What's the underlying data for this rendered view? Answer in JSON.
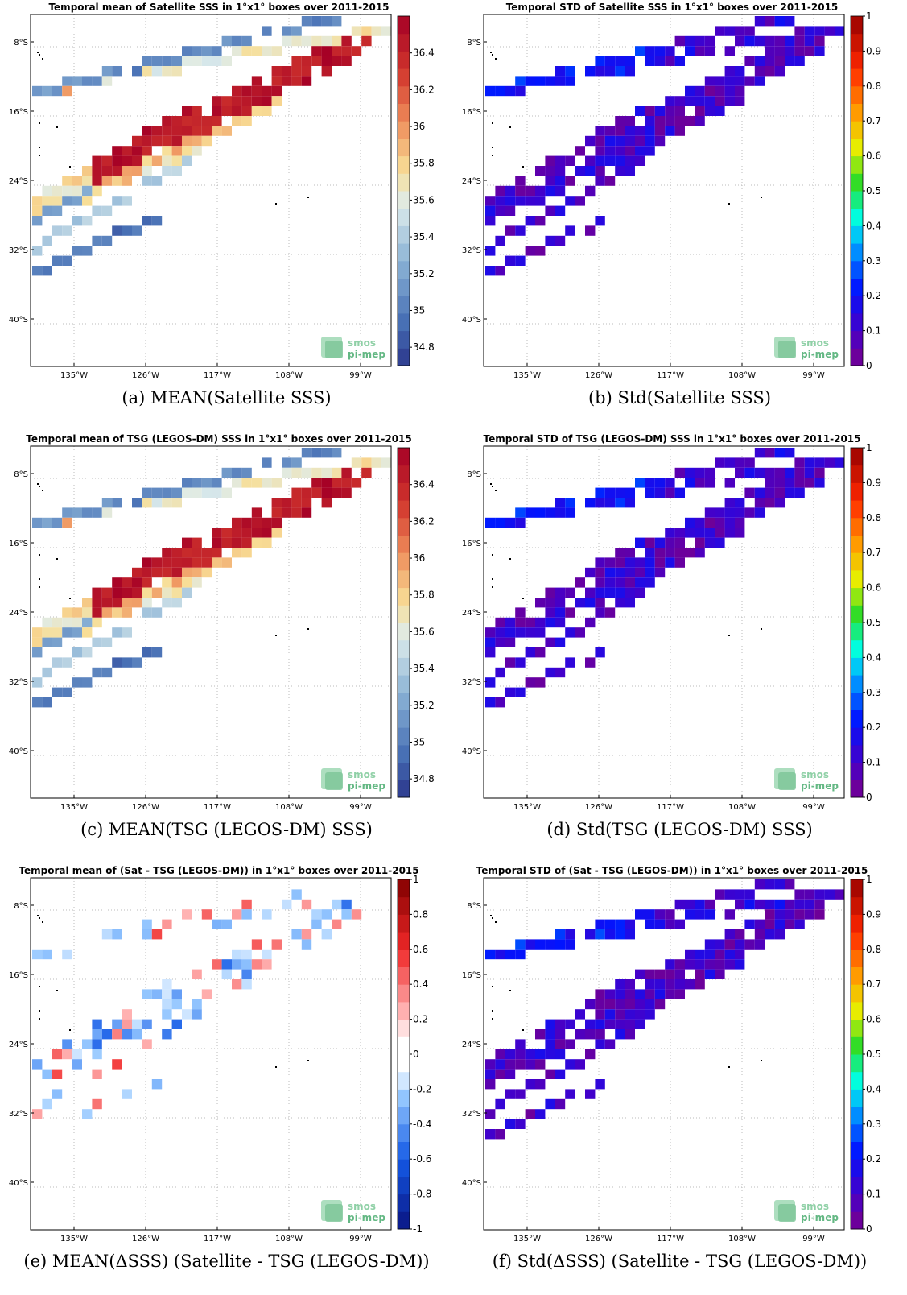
{
  "chart_data": [
    {
      "type": "heatmap",
      "title": "Temporal mean of Satellite SSS in 1°x1° boxes over 2011-2015",
      "caption": "(a) MEAN(Satellite SSS)",
      "x_ticks": [
        "135°W",
        "126°W",
        "117°W",
        "108°W",
        "99°W"
      ],
      "y_ticks": [
        "8°S",
        "16°S",
        "24°S",
        "32°S",
        "40°S"
      ],
      "colormap": "diverging_red_blue",
      "clim": [
        34.7,
        36.6
      ],
      "colorbar_ticks": [
        "34.8",
        "35",
        "35.2",
        "35.4",
        "35.6",
        "35.8",
        "36",
        "36.2",
        "36.4"
      ],
      "logo": [
        "smos",
        "pi-mep"
      ]
    },
    {
      "type": "heatmap",
      "title": "Temporal STD of Satellite SSS in 1°x1° boxes over 2011-2015",
      "caption": "(b) Std(Satellite SSS)",
      "x_ticks": [
        "135°W",
        "126°W",
        "117°W",
        "108°W",
        "99°W"
      ],
      "y_ticks": [
        "8°S",
        "16°S",
        "24°S",
        "32°S",
        "40°S"
      ],
      "colormap": "jet",
      "clim": [
        0,
        1
      ],
      "colorbar_ticks": [
        "0",
        "0.1",
        "0.2",
        "0.3",
        "0.4",
        "0.5",
        "0.6",
        "0.7",
        "0.8",
        "0.9",
        "1"
      ],
      "logo": [
        "smos",
        "pi-mep"
      ]
    },
    {
      "type": "heatmap",
      "title": "Temporal mean of TSG (LEGOS-DM) SSS in 1°x1° boxes over 2011-2015",
      "caption": "(c) MEAN(TSG (LEGOS-DM) SSS)",
      "x_ticks": [
        "135°W",
        "126°W",
        "117°W",
        "108°W",
        "99°W"
      ],
      "y_ticks": [
        "8°S",
        "16°S",
        "24°S",
        "32°S",
        "40°S"
      ],
      "colormap": "diverging_red_blue",
      "clim": [
        34.7,
        36.6
      ],
      "colorbar_ticks": [
        "34.8",
        "35",
        "35.2",
        "35.4",
        "35.6",
        "35.8",
        "36",
        "36.2",
        "36.4"
      ],
      "logo": [
        "smos",
        "pi-mep"
      ]
    },
    {
      "type": "heatmap",
      "title": "Temporal STD of TSG (LEGOS-DM) SSS in 1°x1° boxes over 2011-2015",
      "caption": "(d) Std(TSG (LEGOS-DM) SSS)",
      "x_ticks": [
        "135°W",
        "126°W",
        "117°W",
        "108°W",
        "99°W"
      ],
      "y_ticks": [
        "8°S",
        "16°S",
        "24°S",
        "32°S",
        "40°S"
      ],
      "colormap": "jet",
      "clim": [
        0,
        1
      ],
      "colorbar_ticks": [
        "0",
        "0.1",
        "0.2",
        "0.3",
        "0.4",
        "0.5",
        "0.6",
        "0.7",
        "0.8",
        "0.9",
        "1"
      ],
      "logo": [
        "smos",
        "pi-mep"
      ]
    },
    {
      "type": "heatmap",
      "title": "Temporal mean of (Sat - TSG (LEGOS-DM)) in 1°x1° boxes over 2011-2015",
      "caption": "(e) MEAN(ΔSSS) (Satellite - TSG (LEGOS-DM))",
      "x_ticks": [
        "135°W",
        "126°W",
        "117°W",
        "108°W",
        "99°W"
      ],
      "y_ticks": [
        "8°S",
        "16°S",
        "24°S",
        "32°S",
        "40°S"
      ],
      "colormap": "diverging_blue_white_red",
      "clim": [
        -1,
        1
      ],
      "colorbar_ticks": [
        "-1",
        "-0.8",
        "-0.6",
        "-0.4",
        "-0.2",
        "0",
        "0.2",
        "0.4",
        "0.6",
        "0.8",
        "1"
      ],
      "logo": [
        "smos",
        "pi-mep"
      ]
    },
    {
      "type": "heatmap",
      "title": "Temporal STD of (Sat - TSG (LEGOS-DM)) in 1°x1° boxes over 2011-2015",
      "caption": "(f) Std(ΔSSS) (Satellite - TSG (LEGOS-DM))",
      "x_ticks": [
        "135°W",
        "126°W",
        "117°W",
        "108°W",
        "99°W"
      ],
      "y_ticks": [
        "8°S",
        "16°S",
        "24°S",
        "32°S",
        "40°S"
      ],
      "colormap": "jet",
      "clim": [
        0,
        1
      ],
      "colorbar_ticks": [
        "0",
        "0.1",
        "0.2",
        "0.3",
        "0.4",
        "0.5",
        "0.6",
        "0.7",
        "0.8",
        "0.9",
        "1"
      ],
      "logo": [
        "smos",
        "pi-mep"
      ]
    }
  ]
}
